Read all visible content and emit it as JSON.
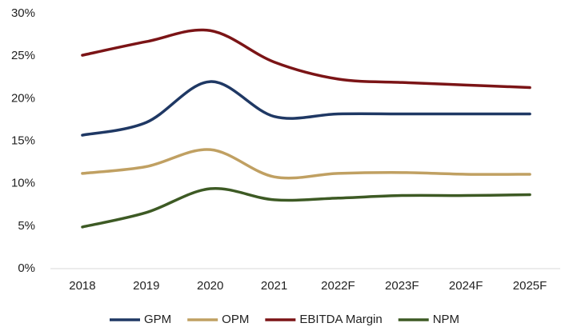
{
  "chart_data": {
    "type": "line",
    "categories": [
      "2018",
      "2019",
      "2020",
      "2021",
      "2022F",
      "2023F",
      "2024F",
      "2025F"
    ],
    "series": [
      {
        "name": "GPM",
        "color": "#1f3864",
        "values": [
          15.7,
          17.2,
          22.0,
          17.9,
          18.2,
          18.2,
          18.2,
          18.2
        ]
      },
      {
        "name": "OPM",
        "color": "#c0a062",
        "values": [
          11.2,
          12.0,
          14.0,
          10.8,
          11.2,
          11.3,
          11.1,
          11.1
        ]
      },
      {
        "name": "EBITDA Margin",
        "color": "#7b1416",
        "values": [
          25.1,
          26.7,
          28.0,
          24.3,
          22.3,
          21.9,
          21.6,
          21.3
        ]
      },
      {
        "name": "NPM",
        "color": "#3d5a24",
        "values": [
          4.9,
          6.6,
          9.4,
          8.1,
          8.3,
          8.6,
          8.6,
          8.7
        ]
      }
    ],
    "ylim": [
      0,
      30
    ],
    "yticks": [
      {
        "value": 0,
        "label": "0%"
      },
      {
        "value": 5,
        "label": "5%"
      },
      {
        "value": 10,
        "label": "10%"
      },
      {
        "value": 15,
        "label": "15%"
      },
      {
        "value": 20,
        "label": "20%"
      },
      {
        "value": 25,
        "label": "25%"
      },
      {
        "value": 30,
        "label": "30%"
      }
    ],
    "grid": false,
    "legend": "bottom"
  }
}
